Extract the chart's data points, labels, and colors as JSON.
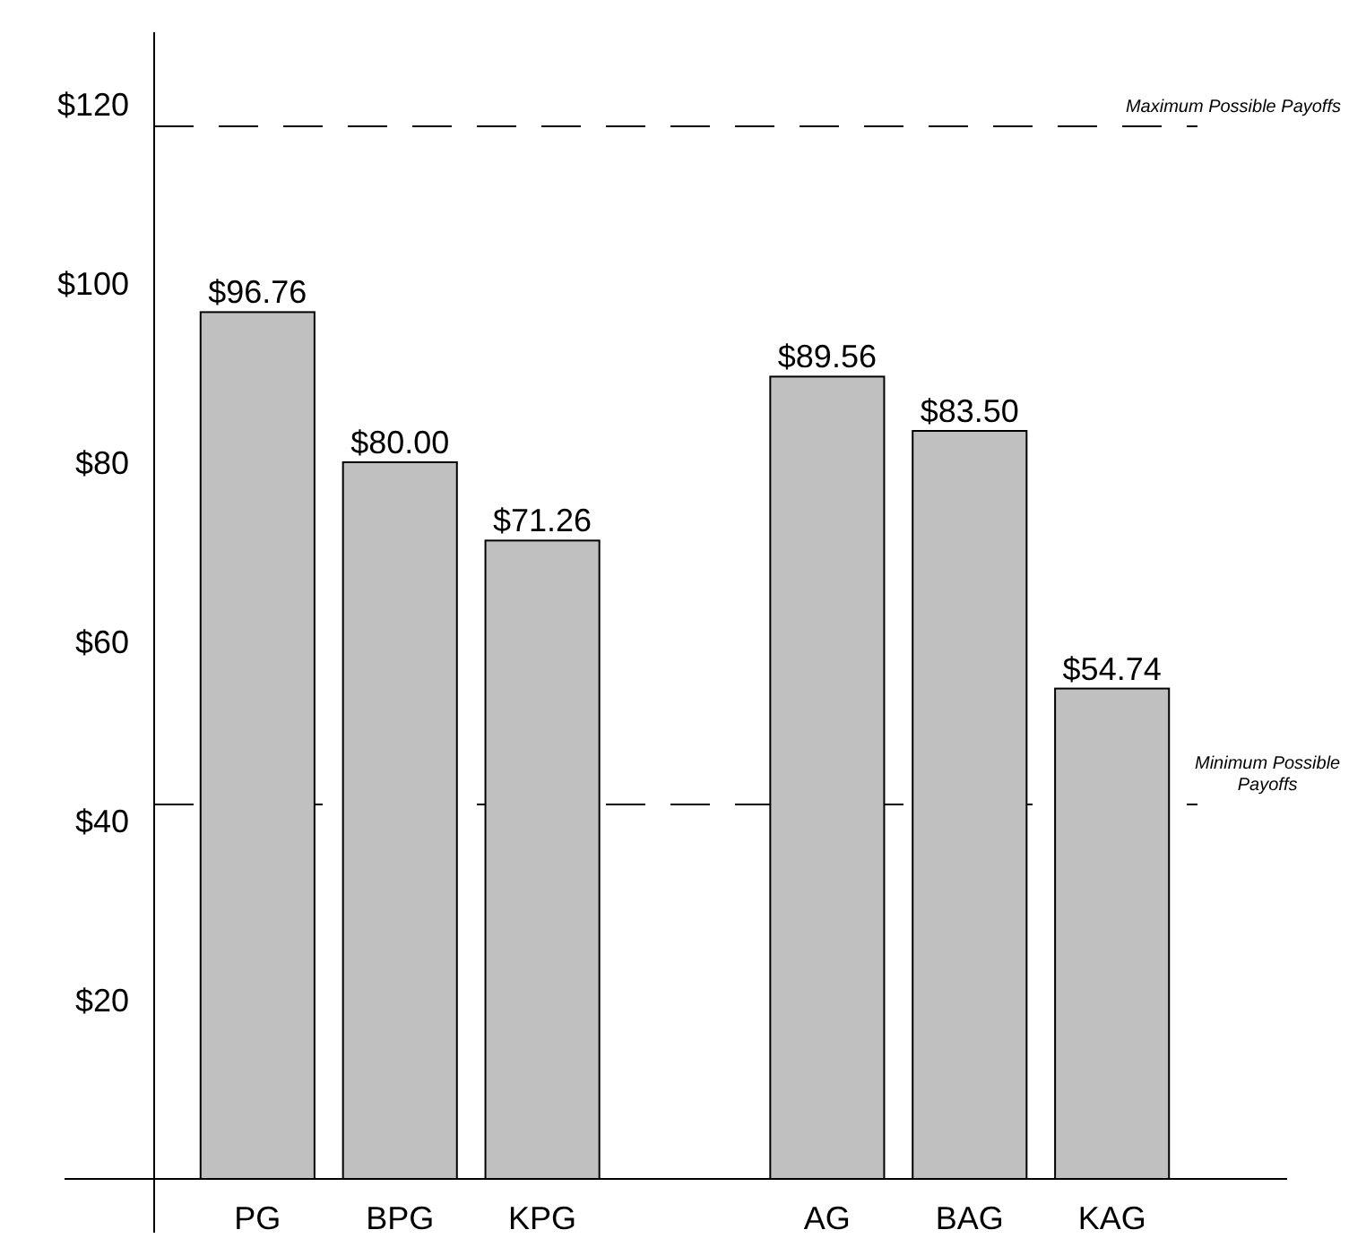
{
  "chart_data": {
    "type": "bar",
    "categories": [
      "PG",
      "BPG",
      "KPG",
      null,
      "AG",
      "BAG",
      "KAG"
    ],
    "values": [
      96.76,
      80.0,
      71.26,
      null,
      89.56,
      83.5,
      54.74
    ],
    "value_labels": [
      "$96.76",
      "$80.00",
      "$71.26",
      null,
      "$89.56",
      "$83.50",
      "$54.74"
    ],
    "color": "#c0c0c0",
    "ylim": [
      0,
      128
    ],
    "yticks": [
      {
        "value": 20,
        "label": "$20"
      },
      {
        "value": 40,
        "label": "$40"
      },
      {
        "value": 60,
        "label": "$60"
      },
      {
        "value": 80,
        "label": "$80"
      },
      {
        "value": 100,
        "label": "$100"
      },
      {
        "value": 120,
        "label": "$120"
      }
    ],
    "ref_lines": [
      {
        "axis": "y",
        "value": 117.5,
        "label": "Maximum Possible Payoffs",
        "line_style": "dashed",
        "color": "#000000"
      },
      {
        "axis": "y",
        "value": 41.8,
        "label": "Minimum Possible Payoffs",
        "line_style": "dashed",
        "color": "#000000"
      }
    ],
    "grid": false
  }
}
